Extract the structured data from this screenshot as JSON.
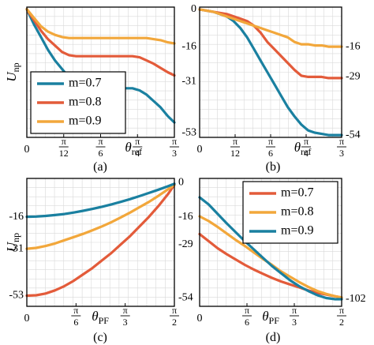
{
  "colors": {
    "blue": "#1a80a0",
    "red": "#e35b3a",
    "orange": "#f2a73b"
  },
  "chart_data": [
    {
      "id": "a",
      "type": "line",
      "caption": "(a)",
      "ylabel_main": "U",
      "ylabel_sub": "np",
      "xlabel_main": "θ",
      "xlabel_sub": "ref",
      "xlim": [
        0,
        1.0472
      ],
      "ylim": [
        -60,
        1
      ],
      "x_ticks": [
        {
          "value": 0,
          "label": "0"
        },
        {
          "value": 0.2618,
          "label": "π/12"
        },
        {
          "value": 0.5236,
          "label": "π/6"
        },
        {
          "value": 0.7854,
          "label": "π/4"
        },
        {
          "value": 1.0472,
          "label": "π/3"
        }
      ],
      "y_ticks_left": [],
      "y_ticks_right": [],
      "legend": {
        "position": "bottom-left",
        "entries": [
          "m=0.7",
          "m=0.8",
          "m=0.9"
        ]
      },
      "series": [
        {
          "name": "m=0.7",
          "color": "blue",
          "x": [
            0,
            0.05,
            0.1,
            0.15,
            0.2,
            0.25,
            0.3,
            0.35,
            0.4,
            0.45,
            0.5,
            0.55,
            0.6,
            0.65,
            0.7,
            0.75,
            0.8,
            0.85,
            0.9,
            0.95,
            1.0,
            1.0472
          ],
          "y": [
            0,
            -7,
            -13,
            -19,
            -24,
            -28,
            -32,
            -35,
            -37,
            -37,
            -37,
            -37,
            -37,
            -37,
            -37,
            -37,
            -38,
            -40,
            -43,
            -46,
            -50,
            -53
          ]
        },
        {
          "name": "m=0.8",
          "color": "red",
          "x": [
            0,
            0.05,
            0.1,
            0.15,
            0.2,
            0.25,
            0.3,
            0.35,
            0.4,
            0.5,
            0.6,
            0.7,
            0.75,
            0.8,
            0.85,
            0.9,
            0.95,
            1.0,
            1.0472
          ],
          "y": [
            0,
            -5,
            -10,
            -14,
            -17,
            -20,
            -21.5,
            -22,
            -22,
            -22,
            -22,
            -22,
            -22,
            -22.5,
            -24,
            -25.5,
            -27.5,
            -29.5,
            -31
          ]
        },
        {
          "name": "m=0.9",
          "color": "orange",
          "x": [
            0,
            0.05,
            0.1,
            0.15,
            0.2,
            0.25,
            0.3,
            0.4,
            0.5,
            0.6,
            0.7,
            0.8,
            0.85,
            0.9,
            0.95,
            1.0,
            1.0472
          ],
          "y": [
            0,
            -4,
            -8,
            -10.5,
            -12,
            -13,
            -13.5,
            -13.5,
            -13.5,
            -13.5,
            -13.5,
            -13.5,
            -13.5,
            -14,
            -14.5,
            -15.5,
            -16
          ]
        }
      ]
    },
    {
      "id": "b",
      "type": "line",
      "caption": "(b)",
      "ylabel_main": "",
      "ylabel_sub": "",
      "xlabel_main": "θ",
      "xlabel_sub": "ref",
      "xlim": [
        0,
        1.0472
      ],
      "ylim": [
        -55,
        1
      ],
      "x_ticks": [
        {
          "value": 0,
          "label": "0"
        },
        {
          "value": 0.2618,
          "label": "π/12"
        },
        {
          "value": 0.5236,
          "label": "π/6"
        },
        {
          "value": 0.7854,
          "label": "π/4"
        },
        {
          "value": 1.0472,
          "label": "π/3"
        }
      ],
      "y_ticks_left": [
        {
          "value": 0,
          "label": "0"
        },
        {
          "value": -16,
          "label": "-16"
        },
        {
          "value": -31,
          "label": "-31"
        },
        {
          "value": -53,
          "label": "-53"
        }
      ],
      "y_ticks_right": [
        {
          "value": -16,
          "label": "-16"
        },
        {
          "value": -29,
          "label": "-29"
        },
        {
          "value": -54,
          "label": "-54"
        }
      ],
      "legend": null,
      "series": [
        {
          "name": "m=0.7",
          "color": "blue",
          "x": [
            0,
            0.1,
            0.2,
            0.25,
            0.3,
            0.35,
            0.4,
            0.45,
            0.5,
            0.55,
            0.6,
            0.65,
            0.7,
            0.75,
            0.8,
            0.85,
            0.9,
            0.95,
            1.0,
            1.0472
          ],
          "y": [
            0,
            -1,
            -3,
            -5,
            -8,
            -12,
            -17,
            -22,
            -27,
            -32,
            -37,
            -42,
            -46,
            -49.5,
            -52,
            -53,
            -53.5,
            -54,
            -54,
            -54
          ]
        },
        {
          "name": "m=0.8",
          "color": "red",
          "x": [
            0,
            0.1,
            0.2,
            0.3,
            0.35,
            0.4,
            0.45,
            0.5,
            0.55,
            0.6,
            0.65,
            0.7,
            0.75,
            0.8,
            0.85,
            0.9,
            0.95,
            1.0,
            1.0472
          ],
          "y": [
            0,
            -1,
            -2,
            -4,
            -5,
            -7,
            -10,
            -14,
            -17,
            -20,
            -23,
            -26,
            -28.5,
            -29,
            -29,
            -29,
            -29.5,
            -29.5,
            -29.5
          ]
        },
        {
          "name": "m=0.9",
          "color": "orange",
          "x": [
            0,
            0.1,
            0.2,
            0.3,
            0.4,
            0.45,
            0.5,
            0.55,
            0.6,
            0.65,
            0.7,
            0.75,
            0.8,
            0.85,
            0.9,
            0.95,
            1.0,
            1.0472
          ],
          "y": [
            0,
            -1,
            -3,
            -5,
            -7,
            -8,
            -9,
            -10,
            -11,
            -12,
            -14,
            -15,
            -15,
            -15.5,
            -15.5,
            -16,
            -16,
            -16
          ]
        }
      ]
    },
    {
      "id": "c",
      "type": "line",
      "caption": "(c)",
      "ylabel_main": "U",
      "ylabel_sub": "np",
      "xlabel_main": "θ",
      "xlabel_sub": "PF",
      "xlim": [
        0,
        1.5708
      ],
      "ylim": [
        -58,
        2
      ],
      "x_ticks": [
        {
          "value": 0,
          "label": "0"
        },
        {
          "value": 0.5236,
          "label": "π/6"
        },
        {
          "value": 1.0472,
          "label": "π/3"
        },
        {
          "value": 1.5708,
          "label": "π/2"
        }
      ],
      "y_ticks_left": [
        {
          "value": -16,
          "label": "-16"
        },
        {
          "value": -31,
          "label": "-31"
        },
        {
          "value": -53,
          "label": "-53"
        }
      ],
      "y_ticks_right": [
        {
          "value": 0,
          "label": "0"
        },
        {
          "value": -16,
          "label": "-16"
        },
        {
          "value": -29,
          "label": "-29"
        },
        {
          "value": -54,
          "label": "-54"
        }
      ],
      "legend": null,
      "series": [
        {
          "name": "m=0.7",
          "color": "red",
          "x": [
            0,
            0.1,
            0.2,
            0.3,
            0.4,
            0.5,
            0.6,
            0.7,
            0.8,
            0.9,
            1.0,
            1.1,
            1.2,
            1.3,
            1.4,
            1.5,
            1.5708
          ],
          "y": [
            -53,
            -52.8,
            -52,
            -50.5,
            -48.5,
            -46,
            -43,
            -40,
            -36.5,
            -33,
            -29,
            -25,
            -20.5,
            -16,
            -11,
            -5.5,
            -1
          ]
        },
        {
          "name": "m=0.8",
          "color": "orange",
          "x": [
            0,
            0.1,
            0.2,
            0.3,
            0.4,
            0.5,
            0.6,
            0.7,
            0.8,
            0.9,
            1.0,
            1.1,
            1.2,
            1.3,
            1.4,
            1.5,
            1.5708
          ],
          "y": [
            -31,
            -30.6,
            -29.7,
            -28.5,
            -27,
            -25.5,
            -24,
            -22.3,
            -20.5,
            -18.5,
            -16.3,
            -14,
            -11.5,
            -9,
            -6.2,
            -3.2,
            -1
          ]
        },
        {
          "name": "m=0.9",
          "color": "blue",
          "x": [
            0,
            0.1,
            0.2,
            0.3,
            0.4,
            0.5,
            0.6,
            0.7,
            0.8,
            0.9,
            1.0,
            1.1,
            1.2,
            1.3,
            1.4,
            1.5,
            1.5708
          ],
          "y": [
            -16,
            -15.9,
            -15.6,
            -15.2,
            -14.7,
            -14,
            -13.2,
            -12.3,
            -11.3,
            -10.2,
            -9,
            -7.7,
            -6.3,
            -4.8,
            -3.3,
            -1.7,
            -0.5
          ]
        }
      ]
    },
    {
      "id": "d",
      "type": "line",
      "caption": "(d)",
      "ylabel_main": "",
      "ylabel_sub": "",
      "xlabel_main": "θ",
      "xlabel_sub": "PF",
      "xlim": [
        0,
        1.5708
      ],
      "ylim": [
        -108,
        0
      ],
      "x_ticks": [
        {
          "value": 0,
          "label": "0"
        },
        {
          "value": 0.5236,
          "label": "π/6"
        },
        {
          "value": 1.0472,
          "label": "π/3"
        },
        {
          "value": 1.5708,
          "label": "π/2"
        }
      ],
      "y_ticks_left": [],
      "y_ticks_right": [
        {
          "value": -102,
          "label": "-102"
        }
      ],
      "legend": {
        "position": "top-right",
        "entries": [
          "m=0.7",
          "m=0.8",
          "m=0.9"
        ]
      },
      "series": [
        {
          "name": "m=0.7",
          "color": "red",
          "x": [
            0,
            0.1,
            0.2,
            0.3,
            0.4,
            0.5,
            0.6,
            0.7,
            0.8,
            0.9,
            1.0,
            1.1,
            1.2,
            1.3,
            1.4,
            1.5,
            1.5708
          ],
          "y": [
            -47,
            -53,
            -59,
            -64,
            -68.5,
            -73,
            -77,
            -80.5,
            -84,
            -87,
            -89.5,
            -92,
            -94.5,
            -96.5,
            -98,
            -99.5,
            -100.5
          ]
        },
        {
          "name": "m=0.8",
          "color": "orange",
          "x": [
            0,
            0.1,
            0.2,
            0.3,
            0.4,
            0.5,
            0.6,
            0.7,
            0.8,
            0.9,
            1.0,
            1.1,
            1.2,
            1.3,
            1.4,
            1.5,
            1.5708
          ],
          "y": [
            -32,
            -36,
            -41,
            -46.5,
            -52,
            -57,
            -62.5,
            -68,
            -73,
            -78.5,
            -83,
            -87.5,
            -91.5,
            -95,
            -97.5,
            -99.5,
            -100.5
          ]
        },
        {
          "name": "m=0.9",
          "color": "blue",
          "x": [
            0,
            0.1,
            0.2,
            0.3,
            0.4,
            0.5,
            0.6,
            0.7,
            0.8,
            0.9,
            1.0,
            1.1,
            1.2,
            1.3,
            1.4,
            1.5,
            1.5708
          ],
          "y": [
            -16,
            -22,
            -30,
            -38,
            -45.5,
            -53,
            -60,
            -67,
            -74,
            -80,
            -86,
            -91,
            -95,
            -98.5,
            -101,
            -102,
            -102
          ]
        }
      ]
    }
  ]
}
